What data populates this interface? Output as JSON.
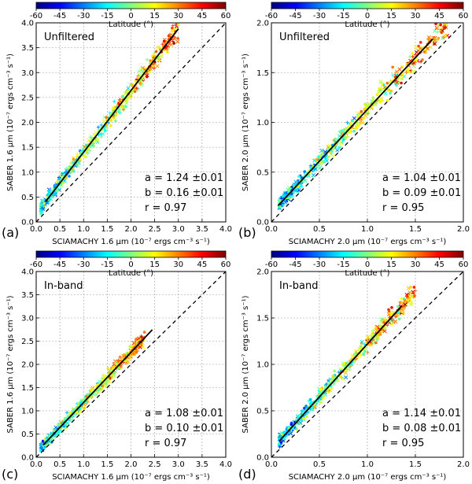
{
  "colorbar": {
    "label": "Latitude (°)",
    "ticks": [
      "-60",
      "-45",
      "-30",
      "-15",
      "0",
      "15",
      "30",
      "45",
      "60"
    ],
    "colors": [
      "#00007f",
      "#0000ff",
      "#007fff",
      "#00ffff",
      "#7fff7f",
      "#ffff00",
      "#ff7f00",
      "#ff0000",
      "#7f0000"
    ]
  },
  "chart_data": [
    {
      "type": "scatter",
      "panel": "(a)",
      "tag": "Unfiltered",
      "xlabel": "SCIAMACHY 1.6 μm (10⁻⁷ ergs cm⁻³ s⁻¹)",
      "ylabel": "SABER 1.6 μm (10⁻⁷ ergs cm⁻³ s⁻¹)",
      "xlim": [
        0.0,
        4.0
      ],
      "ylim": [
        0.0,
        4.0
      ],
      "xticks": [
        "0.0",
        "0.5",
        "1.0",
        "1.5",
        "2.0",
        "2.5",
        "3.0",
        "3.5",
        "4.0"
      ],
      "yticks": [
        "0.0",
        "0.5",
        "1.0",
        "1.5",
        "2.0",
        "2.5",
        "3.0",
        "3.5",
        "4.0"
      ],
      "grid": true,
      "fit": {
        "slope": 1.24,
        "intercept": 0.16,
        "x_range": [
          0.2,
          3.0
        ]
      },
      "stats": [
        "a = 1.24 ±0.01",
        "b = 0.16 ±0.01",
        "r = 0.97"
      ],
      "scatter_extent": {
        "x": [
          0.1,
          3.0
        ],
        "y_spread": 0.35
      }
    },
    {
      "type": "scatter",
      "panel": "(b)",
      "tag": "Unfiltered",
      "xlabel": "SCIAMACHY 2.0 μm (10⁻⁷ ergs cm⁻³ s⁻¹)",
      "ylabel": "SABER 2.0 μm (10⁻⁷ ergs cm⁻³ s⁻¹)",
      "xlim": [
        0.0,
        2.0
      ],
      "ylim": [
        0.0,
        2.0
      ],
      "xticks": [
        "0.0",
        "0.5",
        "1.0",
        "1.5",
        "2.0"
      ],
      "yticks": [
        "0.0",
        "0.5",
        "1.0",
        "1.5",
        "2.0"
      ],
      "grid": true,
      "fit": {
        "slope": 1.04,
        "intercept": 0.09,
        "x_range": [
          0.07,
          1.68
        ]
      },
      "stats": [
        "a = 1.04 ±0.01",
        "b = 0.09 ±0.01",
        "r = 0.95"
      ],
      "scatter_extent": {
        "x": [
          0.08,
          1.85
        ],
        "y_spread": 0.2
      }
    },
    {
      "type": "scatter",
      "panel": "(c)",
      "tag": "In-band",
      "xlabel": "SCIAMACHY 1.6 μm (10⁻⁷ ergs cm⁻³ s⁻¹)",
      "ylabel": "SABER 1.6 μm (10⁻⁷ ergs cm⁻³ s⁻¹)",
      "xlim": [
        0.0,
        4.0
      ],
      "ylim": [
        0.0,
        4.0
      ],
      "xticks": [
        "0.0",
        "0.5",
        "1.0",
        "1.5",
        "2.0",
        "2.5",
        "3.0",
        "3.5",
        "4.0"
      ],
      "yticks": [
        "0.0",
        "0.5",
        "1.0",
        "1.5",
        "2.0",
        "2.5",
        "3.0",
        "3.5",
        "4.0"
      ],
      "grid": true,
      "fit": {
        "slope": 1.08,
        "intercept": 0.1,
        "x_range": [
          0.15,
          2.45
        ]
      },
      "stats": [
        "a = 1.08 ±0.01",
        "b = 0.10 ±0.01",
        "r = 0.97"
      ],
      "scatter_extent": {
        "x": [
          0.1,
          2.3
        ],
        "y_spread": 0.28
      }
    },
    {
      "type": "scatter",
      "panel": "(d)",
      "tag": "In-band",
      "xlabel": "SCIAMACHY 2.0 μm (10⁻⁷ ergs cm⁻³ s⁻¹)",
      "ylabel": "SABER 2.0 μm (10⁻⁷ ergs cm⁻³ s⁻¹)",
      "xlim": [
        0.0,
        2.0
      ],
      "ylim": [
        0.0,
        2.0
      ],
      "xticks": [
        "0.0",
        "0.5",
        "1.0",
        "1.5",
        "2.0"
      ],
      "yticks": [
        "0.0",
        "0.5",
        "1.0",
        "1.5",
        "2.0"
      ],
      "grid": true,
      "fit": {
        "slope": 1.14,
        "intercept": 0.08,
        "x_range": [
          0.08,
          1.36
        ]
      },
      "stats": [
        "a = 1.14 ±0.01",
        "b = 0.08 ±0.01",
        "r = 0.95"
      ],
      "scatter_extent": {
        "x": [
          0.08,
          1.5
        ],
        "y_spread": 0.18
      }
    }
  ]
}
